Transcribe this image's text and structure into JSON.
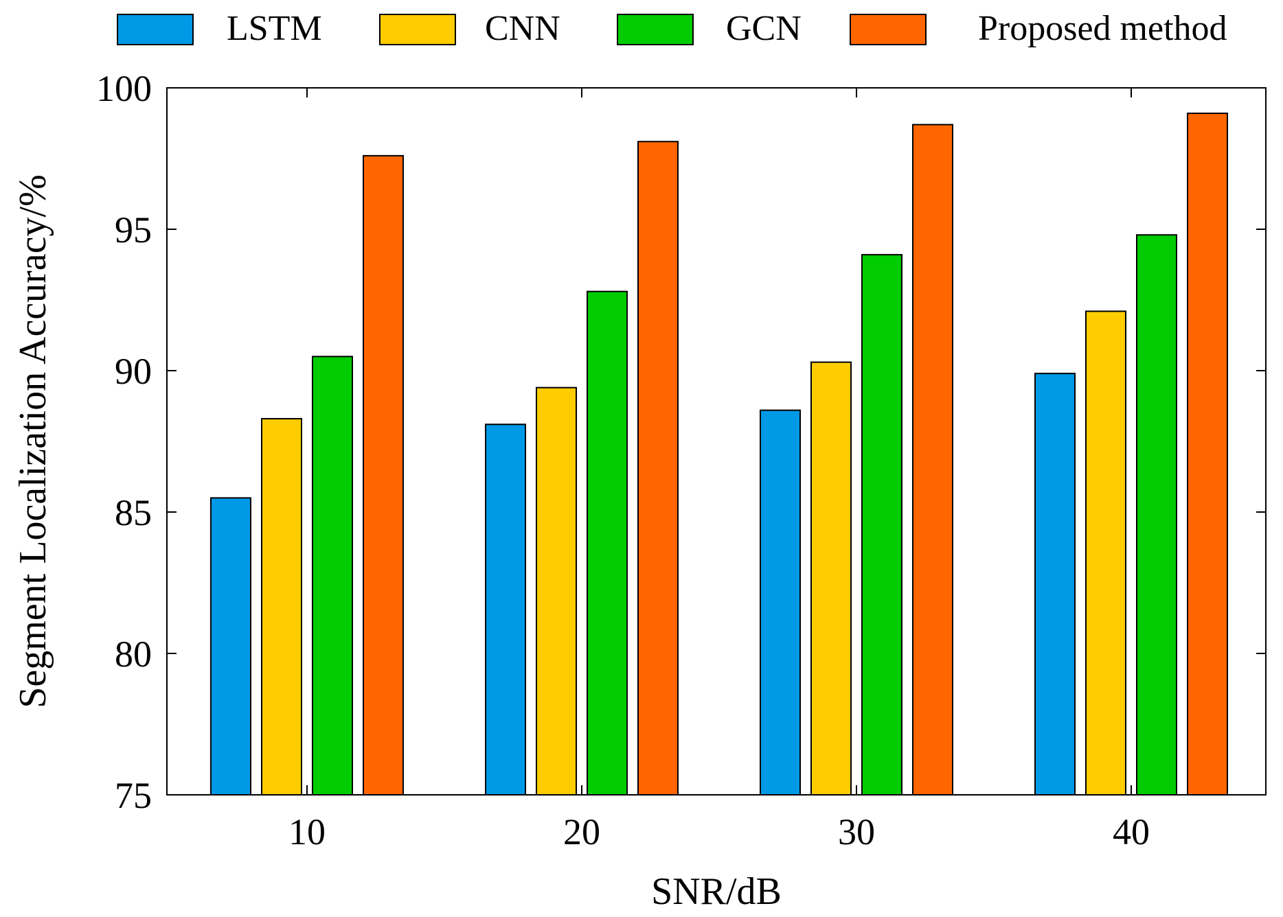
{
  "chart_data": {
    "type": "bar",
    "title": "",
    "xlabel": "SNR/dB",
    "ylabel": "Segment Localization Accuracy/%",
    "categories": [
      "10",
      "20",
      "30",
      "40"
    ],
    "ylim": [
      75,
      100
    ],
    "yticks": [
      75,
      80,
      85,
      90,
      95,
      100
    ],
    "ytick_labels": [
      "75",
      "80",
      "85",
      "90",
      "95",
      "100"
    ],
    "grid": false,
    "legend_position": "top",
    "series": [
      {
        "name": "LSTM",
        "color": "#0099e6",
        "values": [
          85.5,
          88.1,
          88.6,
          89.9
        ]
      },
      {
        "name": "CNN",
        "color": "#ffcc00",
        "values": [
          88.3,
          89.4,
          90.3,
          92.1
        ]
      },
      {
        "name": "GCN",
        "color": "#00cc00",
        "values": [
          90.5,
          92.8,
          94.1,
          94.8
        ]
      },
      {
        "name": "Proposed method",
        "color": "#ff6600",
        "values": [
          97.6,
          98.1,
          98.7,
          99.1
        ]
      }
    ]
  }
}
